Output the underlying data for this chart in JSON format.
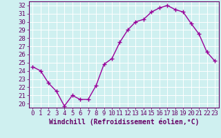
{
  "x": [
    0,
    1,
    2,
    3,
    4,
    5,
    6,
    7,
    8,
    9,
    10,
    11,
    12,
    13,
    14,
    15,
    16,
    17,
    18,
    19,
    20,
    21,
    22,
    23
  ],
  "y": [
    24.5,
    24.0,
    22.5,
    21.5,
    19.7,
    21.0,
    20.5,
    20.5,
    22.2,
    24.8,
    25.5,
    27.5,
    29.0,
    30.0,
    30.3,
    31.2,
    31.7,
    32.0,
    31.5,
    31.2,
    29.8,
    28.5,
    26.3,
    25.2
  ],
  "line_color": "#990099",
  "marker": "+",
  "marker_size": 4,
  "marker_linewidth": 1.0,
  "background_color": "#cff0f0",
  "grid_color": "#ffffff",
  "xlabel": "Windchill (Refroidissement éolien,°C)",
  "ylabel": "",
  "ylim": [
    19.5,
    32.5
  ],
  "xlim": [
    -0.5,
    23.5
  ],
  "yticks": [
    20,
    21,
    22,
    23,
    24,
    25,
    26,
    27,
    28,
    29,
    30,
    31,
    32
  ],
  "xticks": [
    0,
    1,
    2,
    3,
    4,
    5,
    6,
    7,
    8,
    9,
    10,
    11,
    12,
    13,
    14,
    15,
    16,
    17,
    18,
    19,
    20,
    21,
    22,
    23
  ],
  "xlabel_fontsize": 7,
  "tick_fontsize": 6.5,
  "axis_color": "#660066",
  "line_width": 1.0
}
